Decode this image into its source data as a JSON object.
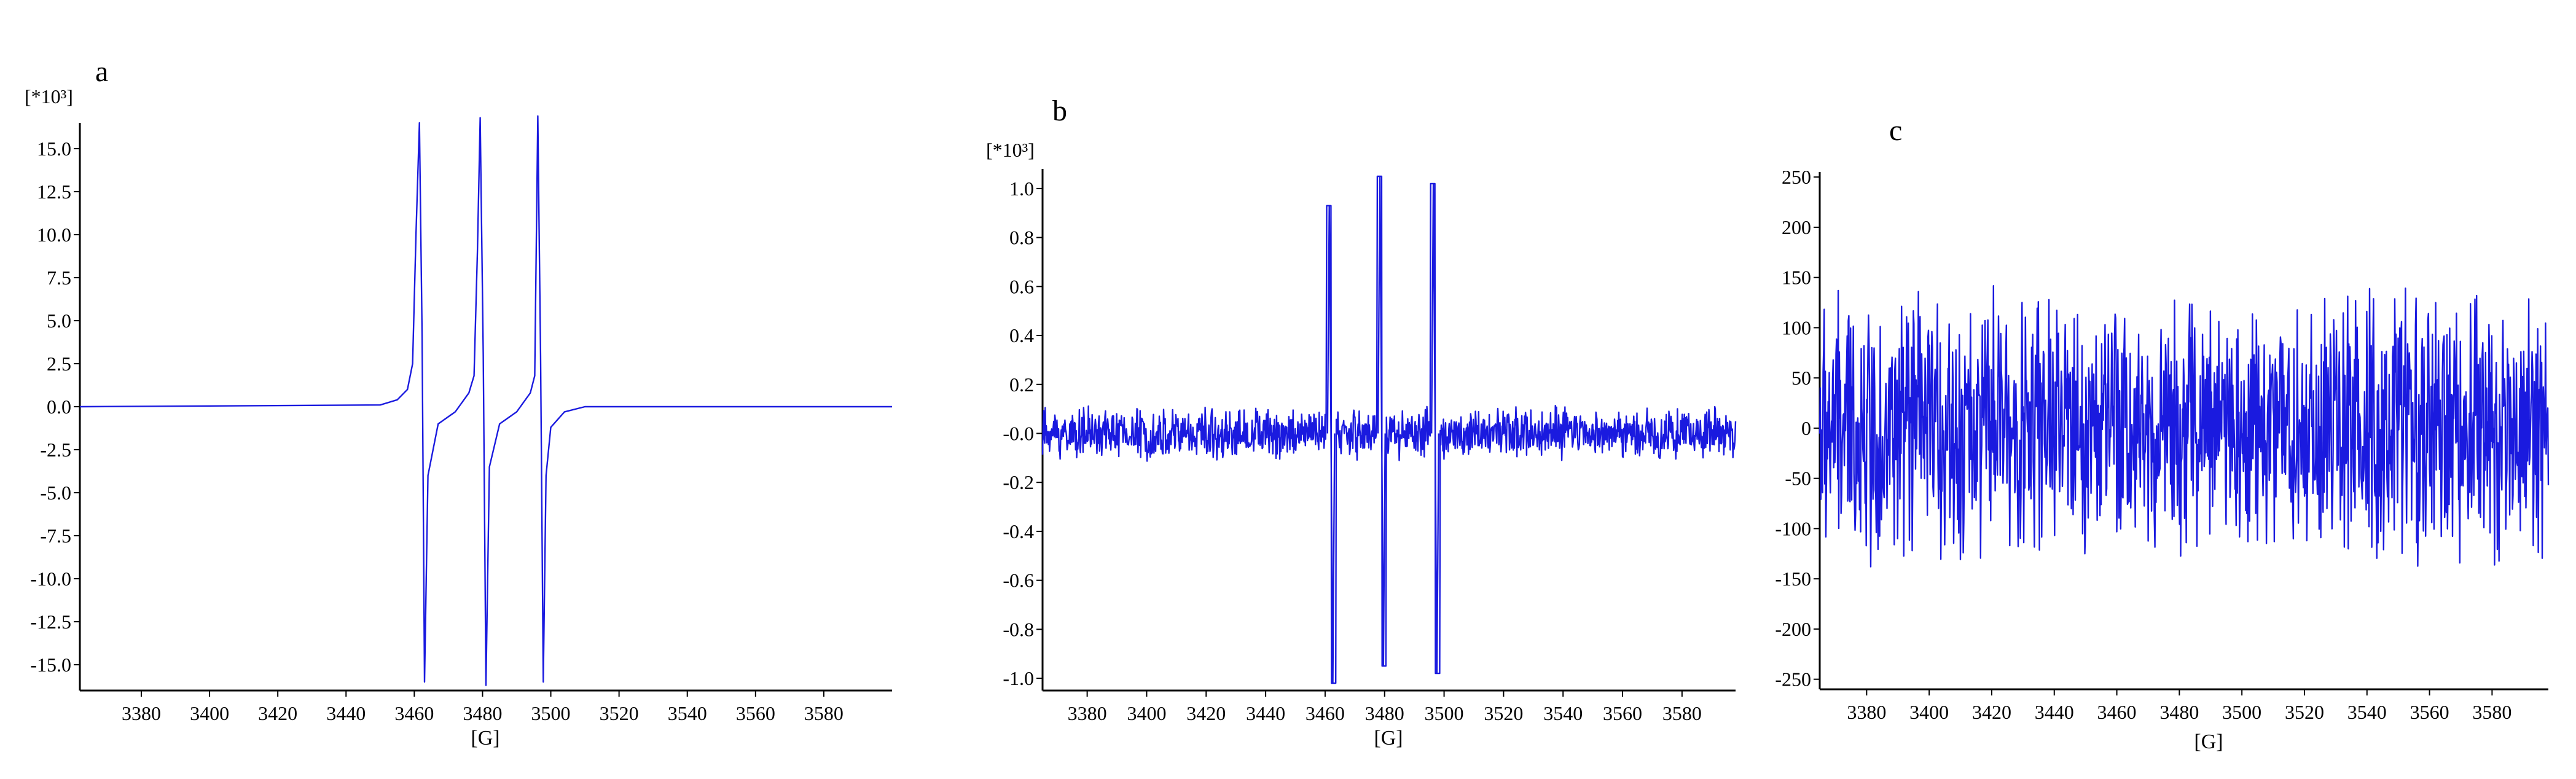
{
  "chart_data": [
    {
      "type": "line",
      "panel_label": "a",
      "multiplier_label": "[*10³]",
      "xlabel": "[G]",
      "xlim": [
        3362,
        3600
      ],
      "ylim": [
        -16.5,
        16.5
      ],
      "xticks": [
        3380,
        3400,
        3420,
        3440,
        3460,
        3480,
        3500,
        3520,
        3540,
        3560,
        3580
      ],
      "yticks": [
        15.0,
        12.5,
        10.0,
        7.5,
        5.0,
        2.5,
        0.0,
        -2.5,
        -5.0,
        -7.5,
        -10.0,
        -12.5,
        -15.0
      ],
      "ytick_labels": [
        "15.0",
        "12.5",
        "10.0",
        "7.5",
        "5.0",
        "2.5",
        "0.0",
        "-2.5",
        "-5.0",
        "-7.5",
        "-10.0",
        "-12.5",
        "-15.0"
      ],
      "color": "#1a1adf",
      "series": [
        {
          "x": [
            3362,
            3450,
            3455,
            3458,
            3459.5,
            3460.5,
            3461.5,
            3462.3,
            3463,
            3464,
            3467,
            3472,
            3476,
            3477.5,
            3478.5,
            3479.3,
            3480.2,
            3481,
            3482,
            3485,
            3490,
            3494,
            3495.3,
            3496.2,
            3497,
            3497.8,
            3498.6,
            3500,
            3504,
            3510,
            3600
          ],
          "y": [
            0.0,
            0.1,
            0.4,
            1.0,
            2.5,
            10.0,
            16.5,
            4.0,
            -16.0,
            -4.0,
            -1.0,
            -0.3,
            0.8,
            1.8,
            9.0,
            16.8,
            3.0,
            -16.2,
            -3.5,
            -1.0,
            -0.3,
            0.8,
            1.8,
            16.9,
            3.0,
            -16.0,
            -4.0,
            -1.2,
            -0.3,
            0.0,
            0.0
          ]
        }
      ]
    },
    {
      "type": "line",
      "panel_label": "b",
      "multiplier_label": "[*10³]",
      "xlabel": "[G]",
      "xlim": [
        3365,
        3598
      ],
      "ylim": [
        -1.05,
        1.08
      ],
      "xticks": [
        3380,
        3400,
        3420,
        3440,
        3460,
        3480,
        3500,
        3520,
        3540,
        3560,
        3580
      ],
      "yticks": [
        1.0,
        0.8,
        0.6,
        0.4,
        0.2,
        -0.0,
        -0.2,
        -0.4,
        -0.6,
        -0.8,
        -1.0
      ],
      "ytick_labels": [
        "1.0",
        "0.8",
        "0.6",
        "0.4",
        "0.2",
        "-0.0",
        "-0.2",
        "-0.4",
        "-0.6",
        "-0.8",
        "-1.0"
      ],
      "color": "#1a1adf",
      "noise_amplitude": 0.12,
      "peaks": [
        {
          "x": 3462,
          "high": 0.93,
          "low": -1.02
        },
        {
          "x": 3479,
          "high": 1.05,
          "low": -0.95
        },
        {
          "x": 3497,
          "high": 1.02,
          "low": -0.98
        }
      ]
    },
    {
      "type": "line",
      "panel_label": "c",
      "xlabel": "[G]",
      "xlim": [
        3365,
        3598
      ],
      "ylim": [
        -260,
        255
      ],
      "xticks": [
        3380,
        3400,
        3420,
        3440,
        3460,
        3480,
        3500,
        3520,
        3540,
        3560,
        3580
      ],
      "yticks": [
        250,
        200,
        150,
        100,
        50,
        0,
        -50,
        -100,
        -150,
        -200,
        -250
      ],
      "ytick_labels": [
        "250",
        "200",
        "150",
        "100",
        "50",
        "0",
        "-50",
        "-100",
        "-150",
        "-200",
        "-250"
      ],
      "color": "#1a1adf",
      "noise_amplitude": 150
    }
  ]
}
